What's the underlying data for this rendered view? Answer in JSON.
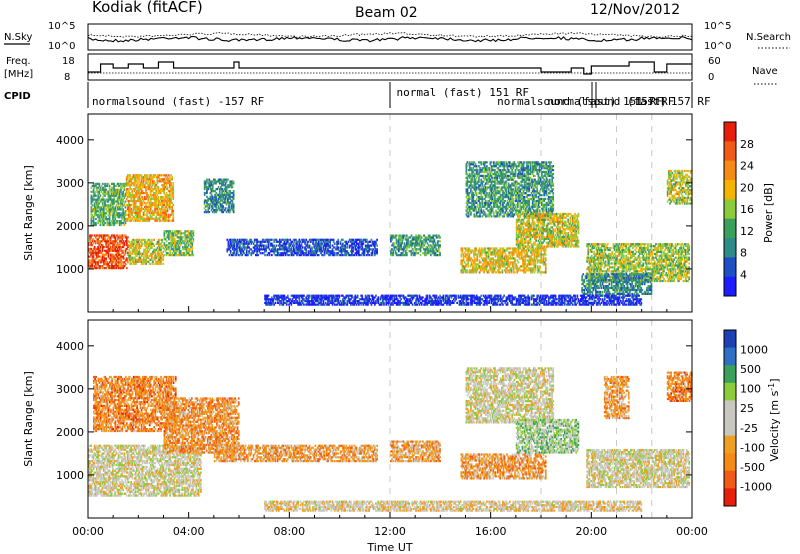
{
  "header": {
    "title": "Kodiak (fitACF)",
    "beam": "Beam 02",
    "date": "12/Nov/2012"
  },
  "top_panels": {
    "nsky_label": "N.Sky",
    "nsearch_label": "N.Search",
    "freq_label_1": "Freq.",
    "freq_label_2": "[MHz]",
    "nave_label": "Nave",
    "cpid_label": "CPID",
    "noise_ticks": [
      "10^5",
      "10^0"
    ],
    "freq_ticks": [
      "18",
      "8"
    ],
    "nave_ticks": [
      "60",
      "0"
    ]
  },
  "cpid_annotations": [
    {
      "text": "normalsound (fast) -157 RF",
      "row": 1,
      "start_hour": 0
    },
    {
      "text": "normal (fast) 151 RF",
      "row": 0,
      "start_hour": 12.1
    },
    {
      "text": "normalsound (fast) 151 RF",
      "row": 1,
      "start_hour": 16.1
    },
    {
      "text": "normalsound (fast)",
      "row": 1,
      "start_hour": 18.1
    },
    {
      "text": "-157 RF",
      "row": 1,
      "start_hour": 21.3
    },
    {
      "text": "157 RF",
      "row": 1,
      "start_hour": 23.0
    }
  ],
  "colors": {
    "power_scale": [
      "#1c1cff",
      "#1f4fc4",
      "#2f8a8a",
      "#3aa05a",
      "#8ccc3c",
      "#f5b400",
      "#f58a14",
      "#f05a14",
      "#e61e0a"
    ],
    "velocity_scale": [
      "#e61e0a",
      "#f05a14",
      "#f58a14",
      "#f0a020",
      "#c8c8c0",
      "#c8c8c0",
      "#8ccc3c",
      "#3aa05a",
      "#2f6fc4",
      "#1f3fb4"
    ]
  },
  "chart_data": [
    {
      "type": "heatmap",
      "title": "",
      "ylabel": "Slant Range [km]",
      "xlabel": "",
      "x_range_hours": [
        0,
        24
      ],
      "ylim": [
        0,
        4600
      ],
      "yticks": [
        1000,
        2000,
        3000,
        4000
      ],
      "colorbar": {
        "label": "Power [dB]",
        "ticks": [
          4,
          8,
          12,
          16,
          20,
          24,
          28
        ],
        "range": [
          0,
          32
        ]
      },
      "regions": [
        {
          "x": [
            0.0,
            1.6
          ],
          "y": [
            1000,
            1800
          ],
          "level": 0.85
        },
        {
          "x": [
            1.6,
            3.0
          ],
          "y": [
            1100,
            1700
          ],
          "level": 0.55
        },
        {
          "x": [
            3.0,
            4.2
          ],
          "y": [
            1300,
            1900
          ],
          "level": 0.45
        },
        {
          "x": [
            0.1,
            1.5
          ],
          "y": [
            2000,
            3000
          ],
          "level": 0.4
        },
        {
          "x": [
            1.5,
            3.4
          ],
          "y": [
            2100,
            3200
          ],
          "level": 0.65
        },
        {
          "x": [
            4.6,
            5.8
          ],
          "y": [
            2300,
            3100
          ],
          "level": 0.3
        },
        {
          "x": [
            5.5,
            11.5
          ],
          "y": [
            1300,
            1700
          ],
          "level": 0.15
        },
        {
          "x": [
            12.0,
            14.0
          ],
          "y": [
            1300,
            1800
          ],
          "level": 0.35
        },
        {
          "x": [
            14.8,
            18.2
          ],
          "y": [
            900,
            1500
          ],
          "level": 0.6
        },
        {
          "x": [
            15.0,
            18.5
          ],
          "y": [
            2200,
            3500
          ],
          "level": 0.35
        },
        {
          "x": [
            17.0,
            19.5
          ],
          "y": [
            1500,
            2300
          ],
          "level": 0.55
        },
        {
          "x": [
            19.8,
            23.9
          ],
          "y": [
            700,
            1600
          ],
          "level": 0.5
        },
        {
          "x": [
            19.6,
            22.4
          ],
          "y": [
            400,
            900
          ],
          "level": 0.3
        },
        {
          "x": [
            23.0,
            24.0
          ],
          "y": [
            2500,
            3300
          ],
          "level": 0.55
        },
        {
          "x": [
            7.0,
            22.0
          ],
          "y": [
            150,
            400
          ],
          "level": 0.08
        }
      ]
    },
    {
      "type": "heatmap",
      "title": "",
      "ylabel": "Slant Range [km]",
      "xlabel": "Time UT",
      "x_range_hours": [
        0,
        24
      ],
      "xticks": [
        "00:00",
        "04:00",
        "08:00",
        "12:00",
        "16:00",
        "20:00",
        "00:00"
      ],
      "ylim": [
        0,
        4600
      ],
      "yticks": [
        1000,
        2000,
        3000,
        4000
      ],
      "colorbar": {
        "label": "Velocity [m s^-1]",
        "ticks": [
          1000,
          500,
          100,
          25,
          -25,
          -100,
          -500,
          -1000
        ]
      },
      "regions": [
        {
          "x": [
            0.0,
            4.5
          ],
          "y": [
            500,
            1700
          ],
          "level": 0.5
        },
        {
          "x": [
            0.2,
            3.5
          ],
          "y": [
            2000,
            3300
          ],
          "level": 0.25
        },
        {
          "x": [
            3.0,
            6.0
          ],
          "y": [
            1500,
            2800
          ],
          "level": 0.28
        },
        {
          "x": [
            5.0,
            11.5
          ],
          "y": [
            1300,
            1700
          ],
          "level": 0.3
        },
        {
          "x": [
            12.0,
            14.0
          ],
          "y": [
            1300,
            1800
          ],
          "level": 0.32
        },
        {
          "x": [
            14.8,
            18.2
          ],
          "y": [
            900,
            1500
          ],
          "level": 0.3
        },
        {
          "x": [
            15.0,
            18.5
          ],
          "y": [
            2200,
            3500
          ],
          "level": 0.5
        },
        {
          "x": [
            17.0,
            19.5
          ],
          "y": [
            1500,
            2300
          ],
          "level": 0.62
        },
        {
          "x": [
            19.8,
            23.9
          ],
          "y": [
            700,
            1600
          ],
          "level": 0.5
        },
        {
          "x": [
            23.0,
            24.0
          ],
          "y": [
            2700,
            3400
          ],
          "level": 0.25
        },
        {
          "x": [
            20.5,
            21.5
          ],
          "y": [
            2300,
            3300
          ],
          "level": 0.3
        },
        {
          "x": [
            7.0,
            22.0
          ],
          "y": [
            150,
            400
          ],
          "level": 0.45
        }
      ]
    }
  ]
}
